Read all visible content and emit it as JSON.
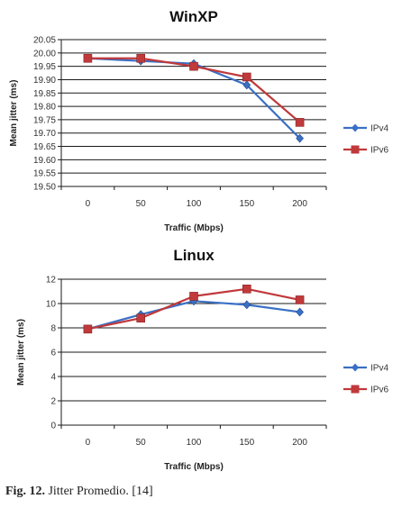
{
  "chart_data": [
    {
      "type": "line",
      "title": "WinXP",
      "xlabel": "Traffic (Mbps)",
      "ylabel": "Mean jitter (ms)",
      "categories": [
        "0",
        "50",
        "100",
        "150",
        "200"
      ],
      "ylim": [
        19.5,
        20.05
      ],
      "yticks": [
        "20.05",
        "20.00",
        "19.95",
        "19.90",
        "19.85",
        "19.80",
        "19.75",
        "19.70",
        "19.65",
        "19.60",
        "19.55",
        "19.50"
      ],
      "grid": true,
      "legend": "right",
      "series": [
        {
          "name": "IPv4",
          "color": "#3a6fc4",
          "marker": "diamond",
          "values": [
            19.98,
            19.97,
            19.96,
            19.88,
            19.68
          ]
        },
        {
          "name": "IPv6",
          "color": "#c0393b",
          "marker": "square",
          "values": [
            19.98,
            19.98,
            19.95,
            19.91,
            19.74
          ]
        }
      ]
    },
    {
      "type": "line",
      "title": "Linux",
      "xlabel": "Traffic (Mbps)",
      "ylabel": "Mean jitter (ms)",
      "categories": [
        "0",
        "50",
        "100",
        "150",
        "200"
      ],
      "ylim": [
        0,
        12
      ],
      "yticks": [
        "12",
        "10",
        "8",
        "6",
        "4",
        "2",
        "0"
      ],
      "grid": true,
      "legend": "right",
      "series": [
        {
          "name": "IPv4",
          "color": "#3a6fc4",
          "marker": "diamond",
          "values": [
            7.9,
            9.1,
            10.2,
            9.9,
            9.3
          ]
        },
        {
          "name": "IPv6",
          "color": "#c0393b",
          "marker": "square",
          "values": [
            7.9,
            8.8,
            10.6,
            11.2,
            10.3
          ]
        }
      ]
    }
  ],
  "caption": {
    "label": "Fig. 12.",
    "text": "Jitter Promedio. [14]"
  }
}
